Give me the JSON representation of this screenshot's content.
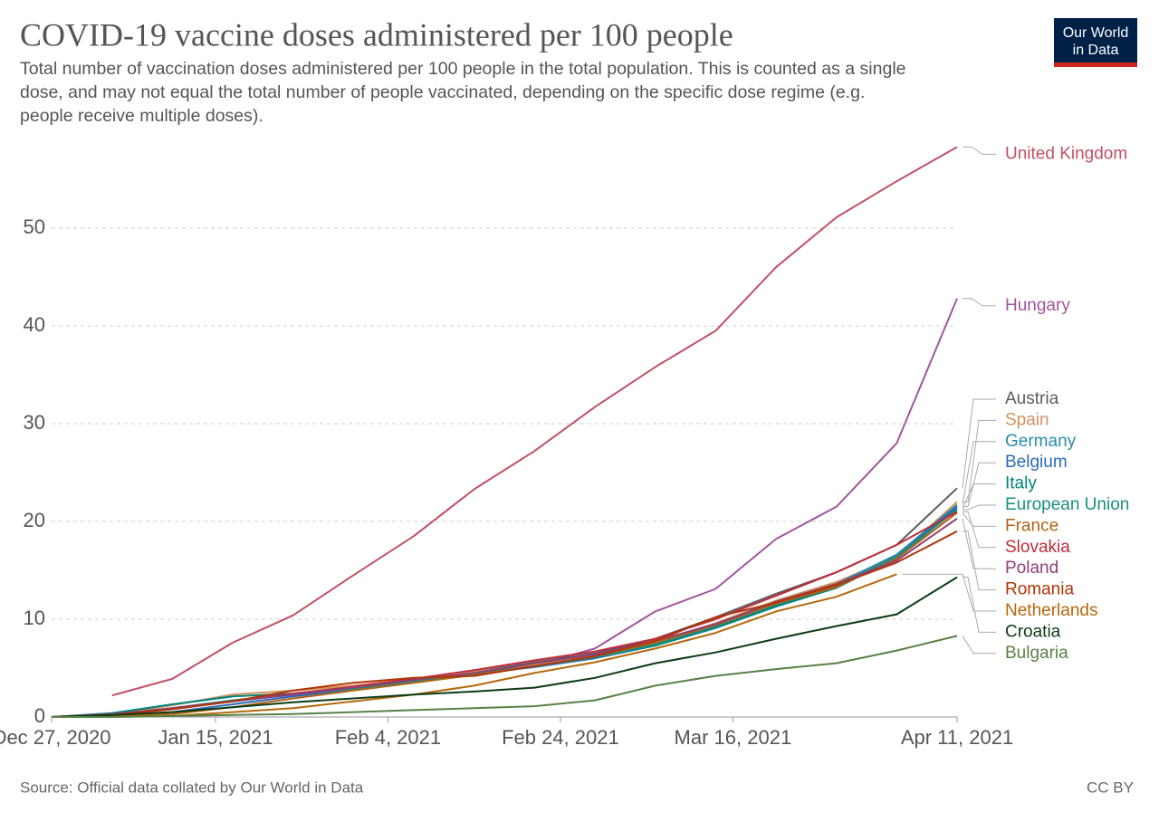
{
  "chart_data": {
    "type": "line",
    "title": "COVID-19 vaccine doses administered per 100 people",
    "subtitle": [
      "Total number of vaccination doses administered per 100 people in the total population. This is counted as a single",
      "dose, and may not equal the total number of people vaccinated, depending on the specific dose regime (e.g.",
      "people receive multiple doses)."
    ],
    "logo": [
      "Our World",
      "in Data"
    ],
    "source": "Source: Official data collated by Our World in Data",
    "license": "CC BY",
    "x": [
      "2020-12-27",
      "2021-01-03",
      "2021-01-10",
      "2021-01-17",
      "2021-01-24",
      "2021-01-31",
      "2021-02-07",
      "2021-02-14",
      "2021-02-21",
      "2021-02-28",
      "2021-03-07",
      "2021-03-14",
      "2021-03-21",
      "2021-03-28",
      "2021-04-04",
      "2021-04-11"
    ],
    "xlim": [
      "2020-12-27",
      "2021-04-11"
    ],
    "xticks": [
      {
        "value": "2020-12-27",
        "label": "Dec 27, 2020"
      },
      {
        "value": "2021-01-15",
        "label": "Jan 15, 2021"
      },
      {
        "value": "2021-02-04",
        "label": "Feb 4, 2021"
      },
      {
        "value": "2021-02-24",
        "label": "Feb 24, 2021"
      },
      {
        "value": "2021-03-16",
        "label": "Mar 16, 2021"
      },
      {
        "value": "2021-04-11",
        "label": "Apr 11, 2021"
      }
    ],
    "ylim": [
      0,
      58.5
    ],
    "yticks": [
      0,
      10,
      20,
      30,
      40,
      50
    ],
    "grid": true,
    "series": [
      {
        "name": "United Kingdom",
        "color": "#c15065",
        "values": [
          null,
          2.2,
          3.9,
          7.6,
          10.4,
          14.5,
          18.5,
          23.3,
          27.2,
          31.7,
          35.8,
          39.5,
          46.0,
          51.1,
          54.8,
          58.3
        ]
      },
      {
        "name": "Hungary",
        "color": "#a2559c",
        "values": [
          0,
          0.2,
          0.8,
          1.6,
          2.4,
          3.0,
          3.7,
          4.4,
          5.3,
          7.0,
          10.8,
          13.1,
          18.2,
          21.5,
          28.0,
          42.8
        ]
      },
      {
        "name": "Austria",
        "color": "#5b5b5b",
        "values": [
          0,
          0.3,
          0.9,
          1.7,
          2.4,
          3.0,
          3.8,
          4.6,
          5.6,
          6.5,
          8.0,
          10.2,
          12.6,
          14.8,
          17.6,
          23.4
        ]
      },
      {
        "name": "Spain",
        "color": "#d2915a",
        "values": [
          0,
          0.3,
          1.2,
          2.3,
          2.7,
          3.2,
          3.9,
          4.6,
          5.4,
          6.3,
          7.6,
          9.6,
          11.9,
          13.8,
          16.4,
          22.0
        ]
      },
      {
        "name": "Germany",
        "color": "#2c8aa8",
        "values": [
          0,
          0.3,
          0.9,
          1.6,
          2.3,
          2.9,
          3.6,
          4.4,
          5.2,
          6.2,
          7.5,
          9.4,
          11.7,
          13.6,
          16.6,
          21.7
        ]
      },
      {
        "name": "Belgium",
        "color": "#286bbb",
        "values": [
          0,
          0.1,
          0.5,
          1.3,
          2.1,
          2.8,
          3.6,
          4.4,
          5.1,
          6.0,
          7.3,
          9.2,
          11.4,
          13.4,
          16.4,
          21.5
        ]
      },
      {
        "name": "Italy",
        "color": "#00847e",
        "values": [
          0,
          0.4,
          1.3,
          2.1,
          2.4,
          2.9,
          3.6,
          4.4,
          5.2,
          6.1,
          7.3,
          9.1,
          11.3,
          13.2,
          16.3,
          21.3
        ]
      },
      {
        "name": "European Union",
        "color": "#18907e",
        "values": [
          0,
          0.3,
          0.9,
          1.7,
          2.3,
          2.9,
          3.6,
          4.4,
          5.2,
          6.1,
          7.4,
          9.3,
          11.5,
          13.4,
          16.4,
          21.2
        ]
      },
      {
        "name": "France",
        "color": "#b16214",
        "values": [
          0,
          0.1,
          0.3,
          1.0,
          1.9,
          2.7,
          3.5,
          4.3,
          5.2,
          6.2,
          7.6,
          9.4,
          11.6,
          13.3,
          16.2,
          20.9
        ]
      },
      {
        "name": "Slovakia",
        "color": "#c12b3b",
        "values": [
          0,
          0.2,
          0.8,
          1.6,
          2.4,
          3.1,
          3.9,
          4.8,
          5.8,
          6.7,
          8.0,
          10.0,
          12.4,
          14.8,
          17.6,
          21.0
        ]
      },
      {
        "name": "Poland",
        "color": "#8f3f75",
        "values": [
          0,
          0.3,
          0.9,
          1.6,
          2.3,
          3.0,
          3.8,
          4.5,
          5.5,
          6.4,
          7.8,
          9.5,
          11.8,
          13.6,
          16.0,
          20.3
        ]
      },
      {
        "name": "Romania",
        "color": "#b13507",
        "values": [
          0,
          0.2,
          0.8,
          1.6,
          2.7,
          3.5,
          4.0,
          4.2,
          5.2,
          6.2,
          7.8,
          10.2,
          11.7,
          13.5,
          15.8,
          19.0
        ]
      },
      {
        "name": "Netherlands",
        "color": "#b5680b",
        "values": [
          null,
          null,
          0.1,
          0.5,
          0.9,
          1.6,
          2.3,
          3.2,
          4.5,
          5.6,
          7.0,
          8.6,
          10.8,
          12.3,
          14.6,
          null
        ]
      },
      {
        "name": "Croatia",
        "color": "#0b3b13",
        "values": [
          0,
          0.2,
          0.5,
          1.0,
          1.5,
          1.9,
          2.3,
          2.6,
          3.0,
          4.0,
          5.5,
          6.6,
          8.0,
          9.3,
          10.5,
          14.3
        ]
      },
      {
        "name": "Bulgaria",
        "color": "#578145",
        "values": [
          0,
          0,
          0.1,
          0.2,
          0.3,
          0.5,
          0.7,
          0.9,
          1.1,
          1.7,
          3.2,
          4.2,
          4.9,
          5.5,
          6.8,
          8.3
        ]
      }
    ]
  }
}
